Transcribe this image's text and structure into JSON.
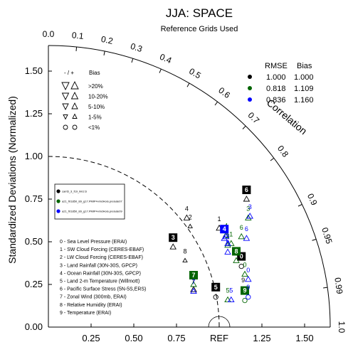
{
  "chart_data": {
    "type": "taylor_diagram",
    "title": "JJA: SPACE",
    "subtitle": "Reference Grids Used",
    "ylabel": "Standardized Deviations (Normalized)",
    "x_ticks": [
      "0.25",
      "0.50",
      "0.75",
      "REF",
      "1.25",
      "1.50"
    ],
    "x_tick_values": [
      0.25,
      0.5,
      0.75,
      1.0,
      1.25,
      1.5
    ],
    "y_ticks": [
      "0.00",
      "0.25",
      "0.50",
      "0.75",
      "1.00",
      "1.25",
      "1.50"
    ],
    "y_tick_values": [
      0,
      0.25,
      0.5,
      0.75,
      1.0,
      1.25,
      1.5
    ],
    "outer_arc_ticks": [
      "0.0",
      "0.1",
      "0.2",
      "0.3",
      "0.4",
      "0.5",
      "0.6",
      "0.7",
      "0.8",
      "0.9",
      "0.95",
      "0.99",
      "1.0"
    ],
    "correlation_label": "Correlation",
    "max_std": 1.65,
    "ref_arc_std": 1.0,
    "bias_legend": {
      "header_sign": "- / +",
      "header_title": "Bias",
      "rows": [
        {
          "label": ">20%"
        },
        {
          "label": "10-20%"
        },
        {
          "label": "5-10%"
        },
        {
          "label": "1-5%"
        },
        {
          "label": "<1%"
        }
      ]
    },
    "stats_table": {
      "col1": "RMSE",
      "col2": "Bias",
      "rows": [
        {
          "color": "#000000",
          "rmse": "1.000",
          "bias": "1.000"
        },
        {
          "color": "#006400",
          "rmse": "0.818",
          "bias": "1.109"
        },
        {
          "color": "#0000ff",
          "rmse": "0.836",
          "bias": "1.160"
        }
      ]
    },
    "case_legend": [
      {
        "color": "#000000",
        "label": "cam5_3_f19_lim2.6"
      },
      {
        "color": "#006400",
        "label": "a21_f01850_89_g17.PMIP4-midHolo.prelude07"
      },
      {
        "color": "#0000ff",
        "label": "a21_f01850_89_g17.PMIP4-midHolo.prelude09"
      }
    ],
    "variables": [
      "0 - Sea Level Pressure (ERAI)",
      "1 - SW Cloud Forcing (CERES-EBAF)",
      "2 - LW Cloud Forcing (CERES-EBAF)",
      "3 - Land Rainfall (30N-30S, GPCP)",
      "4 - Ocean Rainfall (30N-30S, GPCP)",
      "5 - Land 2-m Temperature (Willmott)",
      "6 - Pacific Surface Stress (5N-5S,ERS)",
      "7 - Zonal Wind (300mb, ERAI)",
      "8 - Relative Humidity (ERAI)",
      "9 - Temperature (ERAI)"
    ],
    "points": [
      {
        "case": 0,
        "var": "0",
        "x": 1.13,
        "y": 0.36,
        "marker": "circle",
        "boxed": true
      },
      {
        "case": 0,
        "var": "1",
        "x": 1.0,
        "y": 0.58,
        "marker": "triangle-up",
        "boxed": false
      },
      {
        "case": 0,
        "var": "2",
        "x": 0.83,
        "y": 0.59,
        "marker": "triangle-up-small",
        "boxed": false
      },
      {
        "case": 0,
        "var": "3",
        "x": 0.73,
        "y": 0.47,
        "marker": "triangle-up",
        "boxed": true
      },
      {
        "case": 0,
        "var": "4",
        "x": 0.81,
        "y": 0.64,
        "marker": "triangle-up",
        "boxed": false
      },
      {
        "case": 0,
        "var": "5",
        "x": 0.98,
        "y": 0.18,
        "marker": "circle",
        "boxed": true
      },
      {
        "case": 0,
        "var": "6",
        "x": 1.16,
        "y": 0.75,
        "marker": "triangle-up",
        "boxed": true
      },
      {
        "case": 0,
        "var": "7",
        "x": 0.85,
        "y": 0.22,
        "marker": "triangle-up",
        "boxed": false
      },
      {
        "case": 0,
        "var": "8",
        "x": 0.8,
        "y": 0.39,
        "marker": "triangle-up-small",
        "boxed": false
      },
      {
        "case": 0,
        "var": "9",
        "x": 1.14,
        "y": 0.22,
        "marker": "circle",
        "boxed": false
      },
      {
        "case": 1,
        "var": "0",
        "x": 1.15,
        "y": 0.31,
        "marker": "triangle-up",
        "boxed": false
      },
      {
        "case": 1,
        "var": "1",
        "x": 1.07,
        "y": 0.49,
        "marker": "triangle-up",
        "boxed": false
      },
      {
        "case": 1,
        "var": "2",
        "x": 1.05,
        "y": 0.48,
        "marker": "triangle-up",
        "boxed": false
      },
      {
        "case": 1,
        "var": "3",
        "x": 1.17,
        "y": 0.64,
        "marker": "triangle-up",
        "boxed": false
      },
      {
        "case": 1,
        "var": "4",
        "x": 1.04,
        "y": 0.54,
        "marker": "triangle-up",
        "boxed": false
      },
      {
        "case": 1,
        "var": "5",
        "x": 1.05,
        "y": 0.16,
        "marker": "triangle-up",
        "boxed": false
      },
      {
        "case": 1,
        "var": "6",
        "x": 1.13,
        "y": 0.53,
        "marker": "triangle-up",
        "boxed": false
      },
      {
        "case": 1,
        "var": "7",
        "x": 0.85,
        "y": 0.25,
        "marker": "triangle-up",
        "boxed": true
      },
      {
        "case": 1,
        "var": "8",
        "x": 1.1,
        "y": 0.39,
        "marker": "triangle-up",
        "boxed": true
      },
      {
        "case": 1,
        "var": "9",
        "x": 1.15,
        "y": 0.16,
        "marker": "circle",
        "boxed": true
      },
      {
        "case": 2,
        "var": "0",
        "x": 1.17,
        "y": 0.28,
        "marker": "triangle-up",
        "boxed": false
      },
      {
        "case": 2,
        "var": "1",
        "x": 1.05,
        "y": 0.49,
        "marker": "triangle-up",
        "boxed": false
      },
      {
        "case": 2,
        "var": "2",
        "x": 1.04,
        "y": 0.53,
        "marker": "triangle-up",
        "boxed": false
      },
      {
        "case": 2,
        "var": "3",
        "x": 1.18,
        "y": 0.65,
        "marker": "triangle-up",
        "boxed": false
      },
      {
        "case": 2,
        "var": "4",
        "x": 1.03,
        "y": 0.52,
        "marker": "triangle-up",
        "boxed": true
      },
      {
        "case": 2,
        "var": "5",
        "x": 1.07,
        "y": 0.16,
        "marker": "triangle-up",
        "boxed": false
      },
      {
        "case": 2,
        "var": "6",
        "x": 1.16,
        "y": 0.52,
        "marker": "triangle-up",
        "boxed": false
      },
      {
        "case": 2,
        "var": "7",
        "x": 0.85,
        "y": 0.21,
        "marker": "triangle-up",
        "boxed": false
      },
      {
        "case": 2,
        "var": "8",
        "x": 1.05,
        "y": 0.44,
        "marker": "triangle-up",
        "boxed": false
      },
      {
        "case": 2,
        "var": "9",
        "x": 1.17,
        "y": 0.18,
        "marker": "circle",
        "boxed": false
      }
    ]
  }
}
